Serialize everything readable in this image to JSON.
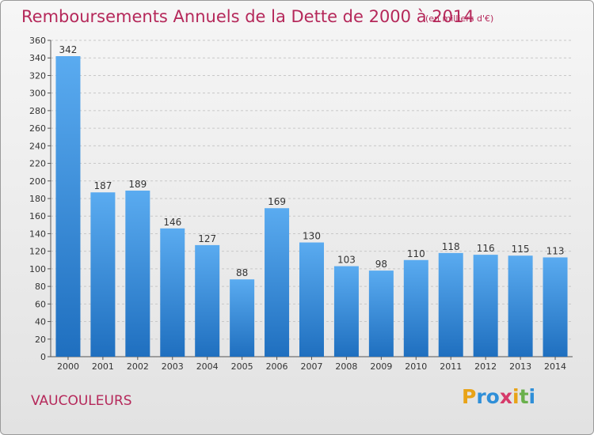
{
  "header": {
    "title": "Remboursements Annuels de la Dette de 2000 à 2014",
    "subtitle": "(en milliers d'€)"
  },
  "footer": {
    "commune": "VAUCOULEURS",
    "logo_text": "Proxiti"
  },
  "colors": {
    "bar": "#3d8fd9",
    "title": "#b5285a"
  },
  "chart_data": {
    "type": "bar",
    "categories": [
      "2000",
      "2001",
      "2002",
      "2003",
      "2004",
      "2005",
      "2006",
      "2007",
      "2008",
      "2009",
      "2010",
      "2011",
      "2012",
      "2013",
      "2014"
    ],
    "values": [
      342,
      187,
      189,
      146,
      127,
      88,
      169,
      130,
      103,
      98,
      110,
      118,
      116,
      115,
      113
    ],
    "title": "Remboursements Annuels de la Dette de 2000 à 2014",
    "xlabel": "",
    "ylabel": "",
    "ylim": [
      0,
      360
    ],
    "yticks": [
      0,
      20,
      40,
      60,
      80,
      100,
      120,
      140,
      160,
      180,
      200,
      220,
      240,
      260,
      280,
      300,
      320,
      340,
      360
    ],
    "grid": true,
    "legend": "none"
  }
}
